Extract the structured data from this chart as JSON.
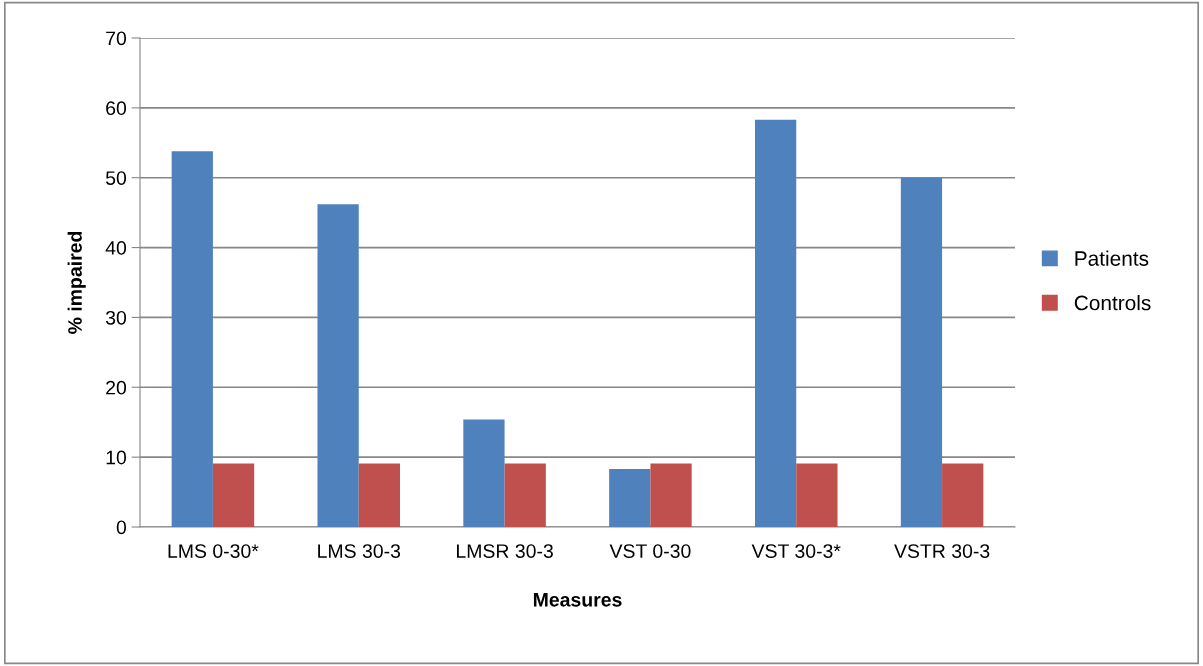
{
  "chart_data": {
    "type": "bar",
    "xlabel": "Measures",
    "ylabel": "% impaired",
    "categories": [
      "LMS 0-30*",
      "LMS 30-3",
      "LMSR 30-3",
      "VST 0-30",
      "VST 30-3*",
      "VSTR 30-3"
    ],
    "series": [
      {
        "name": "Patients",
        "color": "#4f81bd",
        "values": [
          53.8,
          46.2,
          15.4,
          8.3,
          58.3,
          50.0
        ]
      },
      {
        "name": "Controls",
        "color": "#c0504d",
        "values": [
          9.1,
          9.1,
          9.1,
          9.1,
          9.1,
          9.1
        ]
      }
    ],
    "ylim": [
      0,
      70
    ],
    "yticks": [
      0,
      10,
      20,
      30,
      40,
      50,
      60,
      70
    ],
    "grid": "y",
    "legend": "right"
  }
}
